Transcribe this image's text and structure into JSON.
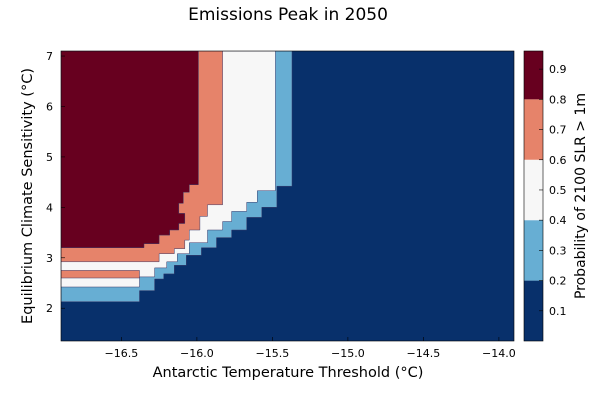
{
  "chart_data": {
    "type": "heatmap",
    "title": "Emissions Peak in 2050",
    "xlabel": "Antarctic Temperature Threshold (°C)",
    "ylabel": "Equilibrium Climate Sensitivity (°C)",
    "colorbar_label": "Probability of 2100 SLR > 1m",
    "xlim": [
      -16.9,
      -13.9
    ],
    "ylim": [
      1.35,
      7.1
    ],
    "x_ticks": [
      {
        "value": -16.5,
        "label": "−16.5"
      },
      {
        "value": -16.0,
        "label": "−16.0"
      },
      {
        "value": -15.5,
        "label": "−15.5"
      },
      {
        "value": -15.0,
        "label": "−15.0"
      },
      {
        "value": -14.5,
        "label": "−14.5"
      },
      {
        "value": -14.0,
        "label": "−14.0"
      }
    ],
    "y_ticks": [
      {
        "value": 2,
        "label": "2"
      },
      {
        "value": 3,
        "label": "3"
      },
      {
        "value": 4,
        "label": "4"
      },
      {
        "value": 5,
        "label": "5"
      },
      {
        "value": 6,
        "label": "6"
      },
      {
        "value": 7,
        "label": "7"
      }
    ],
    "colorbar_range": [
      0,
      0.96
    ],
    "colorbar_ticks": [
      {
        "value": 0.1,
        "label": "0.1"
      },
      {
        "value": 0.2,
        "label": "0.2"
      },
      {
        "value": 0.3,
        "label": "0.3"
      },
      {
        "value": 0.4,
        "label": "0.4"
      },
      {
        "value": 0.5,
        "label": "0.5"
      },
      {
        "value": 0.6,
        "label": "0.6"
      },
      {
        "value": 0.7,
        "label": "0.7"
      },
      {
        "value": 0.8,
        "label": "0.8"
      },
      {
        "value": 0.9,
        "label": "0.9"
      }
    ],
    "levels": [
      {
        "range": [
          0.0,
          0.2
        ],
        "color": "#08306b"
      },
      {
        "range": [
          0.2,
          0.4
        ],
        "color": "#67aed3"
      },
      {
        "range": [
          0.4,
          0.6
        ],
        "color": "#f7f7f7"
      },
      {
        "range": [
          0.6,
          0.8
        ],
        "color": "#e6836a"
      },
      {
        "range": [
          0.8,
          0.96
        ],
        "color": "#67001f"
      }
    ],
    "regions": [
      {
        "level": 1,
        "boundary": [
          [
            -16.9,
            2.13
          ],
          [
            -16.38,
            2.13
          ],
          [
            -16.38,
            2.35
          ],
          [
            -16.28,
            2.35
          ],
          [
            -16.28,
            2.58
          ],
          [
            -16.22,
            2.58
          ],
          [
            -16.22,
            2.68
          ],
          [
            -16.15,
            2.68
          ],
          [
            -16.15,
            2.85
          ],
          [
            -16.07,
            2.85
          ],
          [
            -16.07,
            3.05
          ],
          [
            -15.97,
            3.05
          ],
          [
            -15.97,
            3.2
          ],
          [
            -15.87,
            3.2
          ],
          [
            -15.87,
            3.4
          ],
          [
            -15.77,
            3.4
          ],
          [
            -15.77,
            3.55
          ],
          [
            -15.67,
            3.55
          ],
          [
            -15.67,
            3.8
          ],
          [
            -15.57,
            3.8
          ],
          [
            -15.57,
            4.0
          ],
          [
            -15.47,
            4.0
          ],
          [
            -15.47,
            4.42
          ],
          [
            -15.37,
            4.42
          ],
          [
            -15.37,
            7.1
          ],
          [
            -16.9,
            7.1
          ]
        ]
      },
      {
        "level": 2,
        "boundary": [
          [
            -16.9,
            2.42
          ],
          [
            -16.38,
            2.42
          ],
          [
            -16.38,
            2.62
          ],
          [
            -16.28,
            2.62
          ],
          [
            -16.28,
            2.8
          ],
          [
            -16.2,
            2.8
          ],
          [
            -16.2,
            2.92
          ],
          [
            -16.13,
            2.92
          ],
          [
            -16.13,
            3.08
          ],
          [
            -16.05,
            3.08
          ],
          [
            -16.05,
            3.3
          ],
          [
            -15.93,
            3.3
          ],
          [
            -15.93,
            3.55
          ],
          [
            -15.83,
            3.55
          ],
          [
            -15.83,
            3.72
          ],
          [
            -15.77,
            3.72
          ],
          [
            -15.77,
            3.92
          ],
          [
            -15.67,
            3.92
          ],
          [
            -15.67,
            4.1
          ],
          [
            -15.6,
            4.1
          ],
          [
            -15.6,
            4.33
          ],
          [
            -15.48,
            4.33
          ],
          [
            -15.48,
            7.1
          ],
          [
            -16.9,
            7.1
          ]
        ]
      },
      {
        "level": 3,
        "boundary": [
          [
            -16.9,
            2.6
          ],
          [
            -16.9,
            2.75
          ],
          [
            -16.38,
            2.75
          ],
          [
            -16.38,
            2.6
          ]
        ]
      },
      {
        "level": 3,
        "boundary": [
          [
            -16.9,
            2.92
          ],
          [
            -16.25,
            2.92
          ],
          [
            -16.25,
            3.08
          ],
          [
            -16.15,
            3.08
          ],
          [
            -16.15,
            3.18
          ],
          [
            -16.08,
            3.18
          ],
          [
            -16.08,
            3.35
          ],
          [
            -16.05,
            3.35
          ],
          [
            -16.05,
            3.55
          ],
          [
            -15.98,
            3.55
          ],
          [
            -15.98,
            3.82
          ],
          [
            -15.93,
            3.82
          ],
          [
            -15.93,
            4.05
          ],
          [
            -15.83,
            4.05
          ],
          [
            -15.83,
            7.1
          ],
          [
            -16.9,
            7.1
          ]
        ]
      },
      {
        "level": 4,
        "boundary": [
          [
            -16.9,
            3.2
          ],
          [
            -16.35,
            3.2
          ],
          [
            -16.35,
            3.28
          ],
          [
            -16.25,
            3.28
          ],
          [
            -16.25,
            3.45
          ],
          [
            -16.18,
            3.45
          ],
          [
            -16.18,
            3.55
          ],
          [
            -16.12,
            3.55
          ],
          [
            -16.12,
            3.68
          ],
          [
            -16.08,
            3.68
          ],
          [
            -16.08,
            3.88
          ],
          [
            -16.12,
            3.88
          ],
          [
            -16.12,
            4.08
          ],
          [
            -16.09,
            4.08
          ],
          [
            -16.09,
            4.3
          ],
          [
            -16.05,
            4.3
          ],
          [
            -16.05,
            4.45
          ],
          [
            -15.99,
            4.45
          ],
          [
            -15.99,
            7.1
          ],
          [
            -16.9,
            7.1
          ]
        ]
      }
    ]
  }
}
